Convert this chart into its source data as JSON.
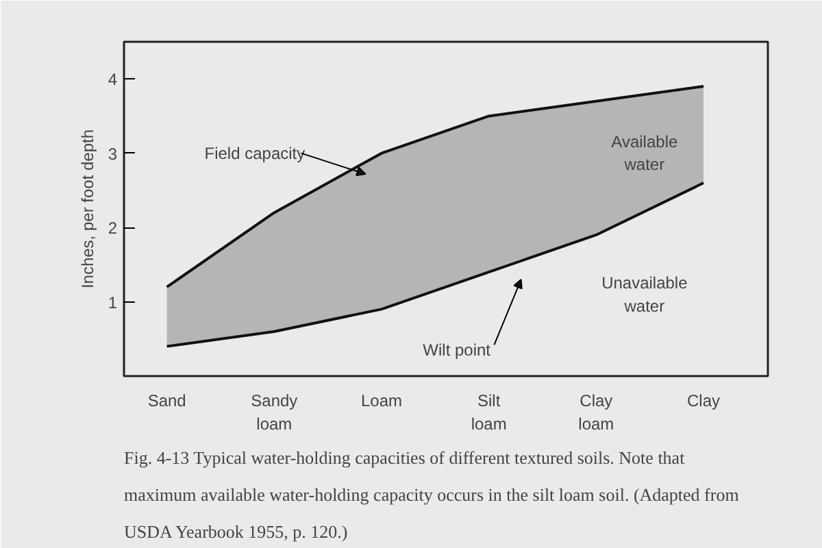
{
  "chart_data": {
    "type": "line",
    "ylabel": "Inches, per foot depth",
    "categories": [
      "Sand",
      "Sandy\nloam",
      "Loam",
      "Silt\nloam",
      "Clay\nloam",
      "Clay"
    ],
    "series": [
      {
        "name": "Field capacity",
        "color": "#111111",
        "values": [
          1.2,
          2.2,
          3.0,
          3.5,
          3.7,
          3.9
        ],
        "lower": [
          0.4,
          0.6,
          0.9,
          1.4,
          1.9,
          2.6
        ],
        "upper": [
          1.2,
          2.2,
          3.0,
          3.5,
          3.7,
          3.9
        ]
      },
      {
        "name": "Wilt point",
        "color": "#111111",
        "values": [
          0.4,
          0.6,
          0.9,
          1.4,
          1.9,
          2.6
        ]
      }
    ],
    "ylim": [
      0,
      4.5
    ],
    "yticks": [
      1,
      2,
      3,
      4
    ],
    "grid": false,
    "annotations": [
      "Available\nwater",
      "Unavailable\nwater",
      "Fig. 4-13  Typical water-holding capacities of different textured soils. Note that maximum available water-holding capacity occurs in the silt loam soil. (Adapted from USDA Yearbook 1955, p. 120.)"
    ]
  }
}
